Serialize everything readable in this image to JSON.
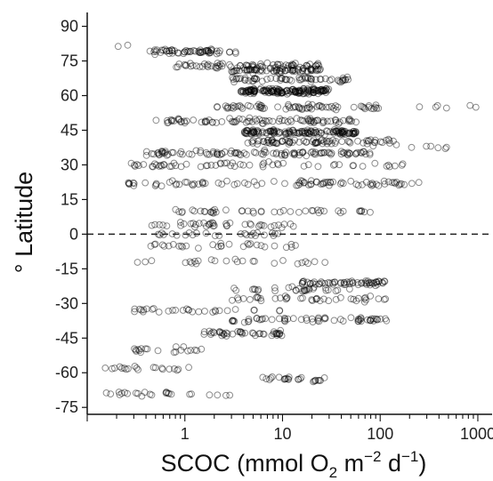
{
  "chart_data": {
    "type": "scatter",
    "title": "",
    "xlabel": "SCOC (mmol O",
    "xlabel_sub": "2",
    "xlabel_mid": " m",
    "xlabel_sup1": "−2",
    "xlabel_mid2": " d",
    "xlabel_sup2": "−1",
    "xlabel_end": ")",
    "ylabel": "° Latitude",
    "x_scale": "log",
    "xlim": [
      0.1,
      1400
    ],
    "ylim": [
      -78,
      96
    ],
    "x_tick_labels": [
      {
        "value": 1,
        "label": "1"
      },
      {
        "value": 10,
        "label": "10"
      },
      {
        "value": 100,
        "label": "100"
      },
      {
        "value": 1000,
        "label": "1000"
      }
    ],
    "y_ticks": [
      90,
      75,
      60,
      45,
      30,
      15,
      0,
      -15,
      -30,
      -45,
      -60,
      -75
    ],
    "y_tick_labels": [
      "90",
      "75",
      "60",
      "45",
      "30",
      "15",
      "0",
      "-15",
      "-30",
      "-45",
      "-60",
      "-75"
    ],
    "reference_line": {
      "y": 0,
      "style": "dashed"
    },
    "marker": "open-circle",
    "grid": false,
    "clusters": [
      {
        "lat": 79,
        "xmin": 0.4,
        "xmax": 3.5,
        "n": 60
      },
      {
        "lat": 73,
        "xmin": 0.8,
        "xmax": 25,
        "n": 70
      },
      {
        "lat": 71,
        "xmin": 3,
        "xmax": 25,
        "n": 70
      },
      {
        "lat": 67,
        "xmin": 3,
        "xmax": 50,
        "n": 60
      },
      {
        "lat": 62,
        "xmin": 3.5,
        "xmax": 30,
        "n": 160
      },
      {
        "lat": 55,
        "xmin": 2,
        "xmax": 100,
        "n": 70
      },
      {
        "lat": 49,
        "xmin": 0.5,
        "xmax": 60,
        "n": 90
      },
      {
        "lat": 44,
        "xmin": 4,
        "xmax": 60,
        "n": 140
      },
      {
        "lat": 40,
        "xmin": 4,
        "xmax": 150,
        "n": 80
      },
      {
        "lat": 35,
        "xmin": 0.4,
        "xmax": 80,
        "n": 110
      },
      {
        "lat": 30,
        "xmin": 0.2,
        "xmax": 200,
        "n": 60
      },
      {
        "lat": 22,
        "xmin": 0.25,
        "xmax": 250,
        "n": 90
      },
      {
        "lat": 10,
        "xmin": 0.8,
        "xmax": 80,
        "n": 45
      },
      {
        "lat": 4,
        "xmin": 0.4,
        "xmax": 15,
        "n": 40
      },
      {
        "lat": 0,
        "xmin": 0.5,
        "xmax": 10,
        "n": 25
      },
      {
        "lat": -5,
        "xmin": 0.4,
        "xmax": 20,
        "n": 30
      },
      {
        "lat": -12,
        "xmin": 0.3,
        "xmax": 30,
        "n": 25
      },
      {
        "lat": -21,
        "xmin": 15,
        "xmax": 120,
        "n": 60
      },
      {
        "lat": -24,
        "xmin": 3,
        "xmax": 60,
        "n": 30
      },
      {
        "lat": -28,
        "xmin": 3,
        "xmax": 120,
        "n": 40
      },
      {
        "lat": -33,
        "xmin": 0.3,
        "xmax": 10,
        "n": 30
      },
      {
        "lat": -37,
        "xmin": 3,
        "xmax": 120,
        "n": 60
      },
      {
        "lat": -43,
        "xmin": 1.5,
        "xmax": 10,
        "n": 45
      },
      {
        "lat": -50,
        "xmin": 0.3,
        "xmax": 1.5,
        "n": 20
      },
      {
        "lat": -58,
        "xmin": 0.15,
        "xmax": 1.5,
        "n": 20
      },
      {
        "lat": -63,
        "xmin": 6,
        "xmax": 30,
        "n": 25
      },
      {
        "lat": -69,
        "xmin": 0.15,
        "xmax": 3,
        "n": 25
      },
      {
        "lat": 55,
        "xmin": 150,
        "xmax": 1200,
        "n": 6
      },
      {
        "lat": 38,
        "xmin": 80,
        "xmax": 600,
        "n": 8
      },
      {
        "lat": 81,
        "xmin": 0.2,
        "xmax": 0.3,
        "n": 2
      }
    ]
  }
}
